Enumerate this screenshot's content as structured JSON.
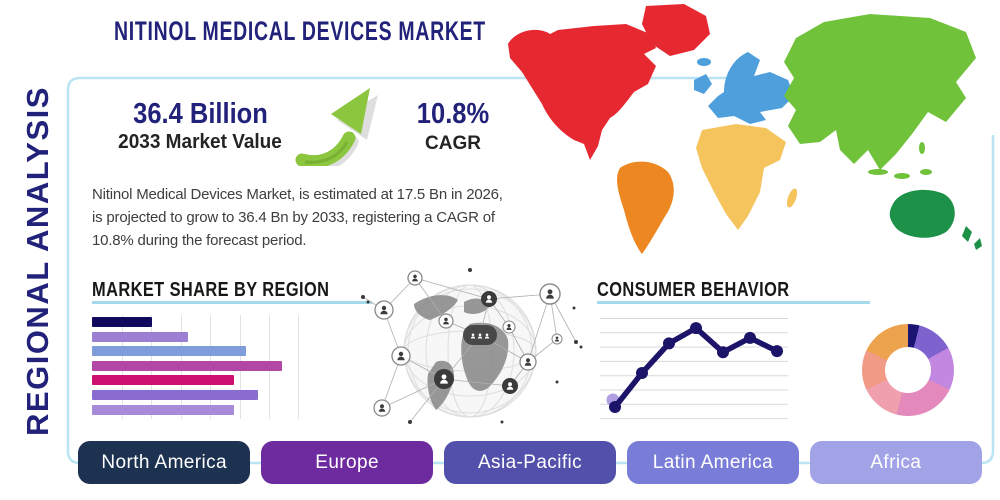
{
  "title": "NITINOL MEDICAL DEVICES MARKET",
  "side_label": "REGIONAL ANALYSIS",
  "stats": {
    "market_value": "36.4 Billion",
    "market_value_caption": "2033 Market Value",
    "cagr_value": "10.8%",
    "cagr_caption": "CAGR"
  },
  "description_lines": [
    "Nitinol Medical Devices Market, is estimated at 17.5 Bn in 2026,",
    "is projected to grow to 36.4 Bn by 2033, registering a CAGR of",
    "10.8% during the forecast period."
  ],
  "chart_data": [
    {
      "type": "bar",
      "title": "MARKET SHARE BY REGION",
      "orientation": "horizontal",
      "categories": [
        "",
        "",
        "",
        "",
        "",
        "",
        ""
      ],
      "values": [
        30,
        48,
        77,
        95,
        71,
        83,
        71
      ],
      "xlim": [
        0,
        100
      ],
      "grid": true,
      "colors": [
        "#10095e",
        "#9c7ed3",
        "#7f9cdb",
        "#b347a5",
        "#ce1070",
        "#8a6cd0",
        "#a78bd8"
      ]
    },
    {
      "type": "line",
      "title": "CONSUMER BEHAVIOR",
      "x": [
        1,
        2,
        3,
        4,
        5,
        6,
        7
      ],
      "values": [
        16,
        47,
        74,
        88,
        66,
        79,
        67
      ],
      "ylim": [
        0,
        100
      ],
      "grid": true,
      "line_color": "#1c1468",
      "first_point_halo_color": "#b19fe3"
    },
    {
      "type": "pie",
      "subtype": "donut",
      "values": [
        4,
        13,
        15,
        22,
        14,
        14,
        18
      ],
      "colors": [
        "#1c1472",
        "#7e63cf",
        "#c287e0",
        "#e389bc",
        "#f09fae",
        "#f19a85",
        "#eda24e"
      ]
    }
  ],
  "regions": [
    {
      "label": "North America",
      "color": "#1d3150"
    },
    {
      "label": "Europe",
      "color": "#6d2b9f"
    },
    {
      "label": "Asia-Pacific",
      "color": "#5250aa"
    },
    {
      "label": "Latin America",
      "color": "#7a7dd8"
    },
    {
      "label": "Africa",
      "color": "#a2a3e6"
    }
  ],
  "map_colors": {
    "north_america": "#e62831",
    "south_america": "#ec8721",
    "europe": "#4f9fdd",
    "africa": "#f5c45c",
    "asia": "#70c23a",
    "australia": "#1e9148"
  },
  "accent": {
    "navy": "#22227a",
    "underline_blue": "#a6d9ec",
    "panel_border": "#b9e4f4",
    "arrow_green": "#8cc63e"
  }
}
